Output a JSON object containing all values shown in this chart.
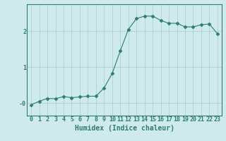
{
  "xlabel": "Humidex (Indice chaleur)",
  "ylabel": "",
  "x_values": [
    0,
    1,
    2,
    3,
    4,
    5,
    6,
    7,
    8,
    9,
    10,
    11,
    12,
    13,
    14,
    15,
    16,
    17,
    18,
    19,
    20,
    21,
    22,
    23
  ],
  "y_values": [
    -0.05,
    0.05,
    0.13,
    0.12,
    0.18,
    0.15,
    0.17,
    0.19,
    0.19,
    0.42,
    0.82,
    1.45,
    2.05,
    2.35,
    2.42,
    2.42,
    2.3,
    2.22,
    2.22,
    2.12,
    2.12,
    2.18,
    2.2,
    1.93
  ],
  "line_color": "#2e7d6e",
  "marker": "D",
  "marker_size": 2.5,
  "background_color": "#ceeaea",
  "grid_color": "#afd0d0",
  "tick_color": "#2e7d6e",
  "label_color": "#2e7d6e",
  "ytick_labels": [
    "-0",
    "1",
    "2"
  ],
  "ylim": [
    -0.35,
    2.75
  ],
  "xlim": [
    -0.5,
    23.5
  ],
  "font_size": 6,
  "label_font_size": 7
}
